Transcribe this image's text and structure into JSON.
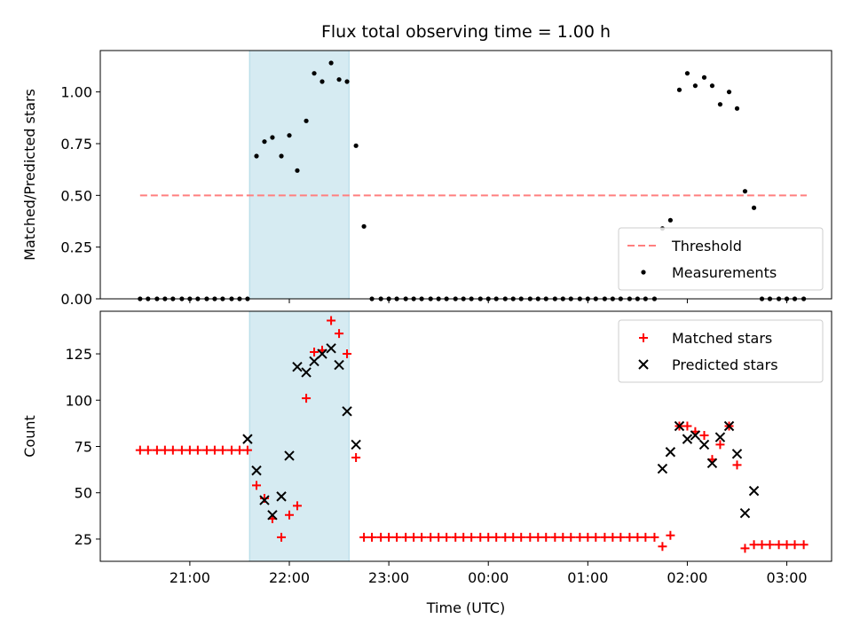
{
  "chart_data": {
    "title": "Flux total observing time = 1.00 h",
    "xlabel": "Time (UTC)",
    "x_tick_labels": [
      "21:00",
      "22:00",
      "23:00",
      "00:00",
      "01:00",
      "02:00",
      "03:00"
    ],
    "highlight_span": {
      "start": 21.6,
      "end": 22.6,
      "color": "#add8e6"
    },
    "panels": [
      {
        "type": "scatter",
        "ylabel": "Matched/Predicted stars",
        "ylim": [
          0,
          1.2
        ],
        "y_ticks": [
          0.0,
          0.25,
          0.5,
          0.75,
          1.0
        ],
        "y_tick_labels": [
          "0.00",
          "0.25",
          "0.50",
          "0.75",
          "1.00"
        ],
        "legend_position": "lower-right",
        "series": [
          {
            "name": "Threshold",
            "style": "dashed-line",
            "color": "#ff7f7f",
            "x": [
              20.5,
              27.2
            ],
            "y": [
              0.5,
              0.5
            ]
          },
          {
            "name": "Measurements",
            "style": "dot",
            "color": "#000000",
            "x": [
              20.5,
              20.58,
              20.67,
              20.75,
              20.83,
              20.92,
              21.0,
              21.08,
              21.17,
              21.25,
              21.33,
              21.42,
              21.5,
              21.58,
              21.67,
              21.75,
              21.83,
              21.92,
              22.0,
              22.08,
              22.17,
              22.25,
              22.33,
              22.42,
              22.5,
              22.58,
              22.67,
              22.75,
              22.83,
              22.92,
              23.0,
              23.08,
              23.17,
              23.25,
              23.33,
              23.42,
              23.5,
              23.58,
              23.67,
              23.75,
              23.83,
              23.92,
              24.0,
              24.08,
              24.17,
              24.25,
              24.33,
              24.42,
              24.5,
              24.58,
              24.67,
              24.75,
              24.83,
              24.92,
              25.0,
              25.08,
              25.17,
              25.25,
              25.33,
              25.42,
              25.5,
              25.58,
              25.67,
              25.75,
              25.83,
              25.92,
              26.0,
              26.08,
              26.17,
              26.25,
              26.33,
              26.42,
              26.5,
              26.58,
              26.67,
              26.75,
              26.83,
              26.92,
              27.0,
              27.08,
              27.17
            ],
            "y": [
              0,
              0,
              0,
              0,
              0,
              0,
              0,
              0,
              0,
              0,
              0,
              0,
              0,
              0,
              0.69,
              0.76,
              0.78,
              0.69,
              0.79,
              0.62,
              0.86,
              1.09,
              1.05,
              1.14,
              1.06,
              1.05,
              0.74,
              0.35,
              0,
              0,
              0,
              0,
              0,
              0,
              0,
              0,
              0,
              0,
              0,
              0,
              0,
              0,
              0,
              0,
              0,
              0,
              0,
              0,
              0,
              0,
              0,
              0,
              0,
              0,
              0,
              0,
              0,
              0,
              0,
              0,
              0,
              0,
              0,
              0.34,
              0.38,
              1.01,
              1.09,
              1.03,
              1.07,
              1.03,
              0.94,
              1.0,
              0.92,
              0.52,
              0.44,
              0,
              0,
              0,
              0,
              0,
              0
            ]
          }
        ]
      },
      {
        "type": "scatter",
        "ylabel": "Count",
        "ylim": [
          13,
          148
        ],
        "y_ticks": [
          25,
          50,
          75,
          100,
          125
        ],
        "y_tick_labels": [
          "25",
          "50",
          "75",
          "100",
          "125"
        ],
        "legend_position": "top-right",
        "series": [
          {
            "name": "Matched stars",
            "style": "plus",
            "color": "#ff0000",
            "x": [
              20.5,
              20.58,
              20.67,
              20.75,
              20.83,
              20.92,
              21.0,
              21.08,
              21.17,
              21.25,
              21.33,
              21.42,
              21.5,
              21.58,
              21.67,
              21.75,
              21.83,
              21.92,
              22.0,
              22.08,
              22.17,
              22.25,
              22.33,
              22.42,
              22.5,
              22.58,
              22.67,
              22.75,
              22.83,
              22.92,
              23.0,
              23.08,
              23.17,
              23.25,
              23.33,
              23.42,
              23.5,
              23.58,
              23.67,
              23.75,
              23.83,
              23.92,
              24.0,
              24.08,
              24.17,
              24.25,
              24.33,
              24.42,
              24.5,
              24.58,
              24.67,
              24.75,
              24.83,
              24.92,
              25.0,
              25.08,
              25.17,
              25.25,
              25.33,
              25.42,
              25.5,
              25.58,
              25.67,
              25.75,
              25.83,
              25.92,
              26.0,
              26.08,
              26.17,
              26.25,
              26.33,
              26.42,
              26.5,
              26.58,
              26.67,
              26.75,
              26.83,
              26.92,
              27.0,
              27.08,
              27.17
            ],
            "y": [
              73,
              73,
              73,
              73,
              73,
              73,
              73,
              73,
              73,
              73,
              73,
              73,
              73,
              73,
              54,
              47,
              36,
              26,
              38,
              43,
              101,
              126,
              127,
              143,
              136,
              125,
              69,
              26,
              26,
              26,
              26,
              26,
              26,
              26,
              26,
              26,
              26,
              26,
              26,
              26,
              26,
              26,
              26,
              26,
              26,
              26,
              26,
              26,
              26,
              26,
              26,
              26,
              26,
              26,
              26,
              26,
              26,
              26,
              26,
              26,
              26,
              26,
              26,
              21,
              27,
              86,
              86,
              83,
              81,
              68,
              76,
              86,
              65,
              20,
              22,
              22,
              22,
              22,
              22,
              22,
              22
            ]
          },
          {
            "name": "Predicted stars",
            "style": "x",
            "color": "#000000",
            "x": [
              21.58,
              21.67,
              21.75,
              21.83,
              21.92,
              22.0,
              22.08,
              22.17,
              22.25,
              22.33,
              22.42,
              22.5,
              22.58,
              22.67,
              25.75,
              25.83,
              25.92,
              26.0,
              26.08,
              26.17,
              26.25,
              26.33,
              26.42,
              26.5,
              26.58,
              26.67
            ],
            "y": [
              79,
              62,
              46,
              38,
              48,
              70,
              118,
              115,
              121,
              125,
              128,
              119,
              94,
              76,
              63,
              72,
              86,
              79,
              81,
              76,
              66,
              80,
              86,
              71,
              39,
              51
            ]
          }
        ]
      }
    ]
  }
}
